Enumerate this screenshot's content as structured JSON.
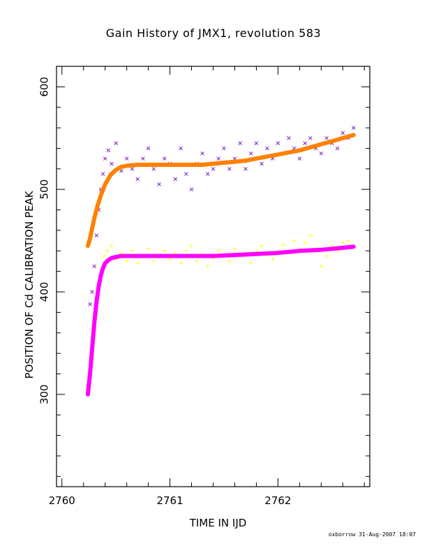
{
  "chart_data": {
    "type": "scatter",
    "title": "Gain History of JMX1, revolution 583",
    "xlabel": "TIME IN IJD",
    "ylabel": "POSITION OF Cd CALIBRATION PEAK",
    "xlim": [
      2759.95,
      2762.85
    ],
    "ylim": [
      210,
      620
    ],
    "xticks": [
      2760,
      2761,
      2762
    ],
    "xtick_labels": [
      "2760",
      "2761",
      "2762"
    ],
    "yticks": [
      300,
      400,
      500,
      600
    ],
    "ytick_labels": [
      "300",
      "400",
      "500",
      "600"
    ],
    "grid": false,
    "legend": "none",
    "series": [
      {
        "marker": "x",
        "color": "#7a1fc2",
        "points": [
          [
            2760.26,
            388
          ],
          [
            2760.28,
            400
          ],
          [
            2760.3,
            425
          ],
          [
            2760.32,
            455
          ],
          [
            2760.34,
            480
          ],
          [
            2760.36,
            500
          ],
          [
            2760.38,
            515
          ],
          [
            2760.4,
            530
          ],
          [
            2760.43,
            538
          ],
          [
            2760.46,
            525
          ],
          [
            2760.5,
            545
          ],
          [
            2760.55,
            518
          ],
          [
            2760.6,
            530
          ],
          [
            2760.65,
            520
          ],
          [
            2760.7,
            510
          ],
          [
            2760.75,
            530
          ],
          [
            2760.8,
            540
          ],
          [
            2760.85,
            520
          ],
          [
            2760.9,
            505
          ],
          [
            2760.95,
            530
          ],
          [
            2761.0,
            525
          ],
          [
            2761.05,
            510
          ],
          [
            2761.1,
            540
          ],
          [
            2761.15,
            515
          ],
          [
            2761.2,
            500
          ],
          [
            2761.25,
            525
          ],
          [
            2761.3,
            535
          ],
          [
            2761.35,
            515
          ],
          [
            2761.4,
            520
          ],
          [
            2761.45,
            530
          ],
          [
            2761.5,
            540
          ],
          [
            2761.55,
            520
          ],
          [
            2761.6,
            530
          ],
          [
            2761.65,
            545
          ],
          [
            2761.7,
            520
          ],
          [
            2761.75,
            535
          ],
          [
            2761.8,
            545
          ],
          [
            2761.85,
            525
          ],
          [
            2761.9,
            540
          ],
          [
            2761.95,
            530
          ],
          [
            2762.0,
            545
          ],
          [
            2762.05,
            535
          ],
          [
            2762.1,
            550
          ],
          [
            2762.15,
            540
          ],
          [
            2762.2,
            530
          ],
          [
            2762.25,
            545
          ],
          [
            2762.3,
            550
          ],
          [
            2762.35,
            540
          ],
          [
            2762.4,
            535
          ],
          [
            2762.45,
            550
          ],
          [
            2762.5,
            545
          ],
          [
            2762.55,
            540
          ],
          [
            2762.6,
            555
          ],
          [
            2762.65,
            550
          ],
          [
            2762.7,
            560
          ]
        ]
      },
      {
        "marker": "+",
        "color": "#ffff00",
        "points": [
          [
            2760.3,
            355
          ],
          [
            2760.33,
            395
          ],
          [
            2760.36,
            420
          ],
          [
            2760.39,
            435
          ],
          [
            2760.42,
            440
          ],
          [
            2760.46,
            445
          ],
          [
            2760.5,
            432
          ],
          [
            2760.55,
            438
          ],
          [
            2760.6,
            430
          ],
          [
            2760.65,
            440
          ],
          [
            2760.7,
            428
          ],
          [
            2760.75,
            435
          ],
          [
            2760.8,
            442
          ],
          [
            2760.85,
            430
          ],
          [
            2760.9,
            436
          ],
          [
            2760.95,
            440
          ],
          [
            2761.0,
            432
          ],
          [
            2761.05,
            438
          ],
          [
            2761.1,
            428
          ],
          [
            2761.15,
            440
          ],
          [
            2761.2,
            445
          ],
          [
            2761.25,
            430
          ],
          [
            2761.3,
            437
          ],
          [
            2761.35,
            425
          ],
          [
            2761.4,
            433
          ],
          [
            2761.45,
            440
          ],
          [
            2761.5,
            435
          ],
          [
            2761.55,
            430
          ],
          [
            2761.6,
            442
          ],
          [
            2761.65,
            436
          ],
          [
            2761.7,
            438
          ],
          [
            2761.75,
            428
          ],
          [
            2761.8,
            440
          ],
          [
            2761.85,
            445
          ],
          [
            2761.9,
            436
          ],
          [
            2761.95,
            432
          ],
          [
            2762.0,
            440
          ],
          [
            2762.05,
            446
          ],
          [
            2762.1,
            438
          ],
          [
            2762.15,
            450
          ],
          [
            2762.2,
            442
          ],
          [
            2762.25,
            448
          ],
          [
            2762.3,
            455
          ],
          [
            2762.35,
            440
          ],
          [
            2762.4,
            425
          ],
          [
            2762.45,
            435
          ],
          [
            2762.5,
            445
          ],
          [
            2762.55,
            440
          ],
          [
            2762.6,
            448
          ],
          [
            2762.65,
            450
          ],
          [
            2762.7,
            445
          ]
        ]
      },
      {
        "type": "line",
        "color": "#ff8000",
        "points": [
          [
            2760.24,
            445
          ],
          [
            2760.26,
            452
          ],
          [
            2760.28,
            462
          ],
          [
            2760.3,
            472
          ],
          [
            2760.33,
            484
          ],
          [
            2760.36,
            494
          ],
          [
            2760.4,
            505
          ],
          [
            2760.45,
            514
          ],
          [
            2760.5,
            519
          ],
          [
            2760.55,
            522
          ],
          [
            2760.6,
            523
          ],
          [
            2760.7,
            524
          ],
          [
            2760.8,
            524
          ],
          [
            2760.9,
            524
          ],
          [
            2761.0,
            524
          ],
          [
            2761.1,
            524
          ],
          [
            2761.2,
            524
          ],
          [
            2761.3,
            524
          ],
          [
            2761.4,
            525
          ],
          [
            2761.5,
            526
          ],
          [
            2761.6,
            527
          ],
          [
            2761.7,
            528
          ],
          [
            2761.8,
            530
          ],
          [
            2761.9,
            532
          ],
          [
            2762.0,
            534
          ],
          [
            2762.1,
            536
          ],
          [
            2762.2,
            538
          ],
          [
            2762.3,
            541
          ],
          [
            2762.4,
            544
          ],
          [
            2762.5,
            547
          ],
          [
            2762.6,
            550
          ],
          [
            2762.7,
            553
          ]
        ]
      },
      {
        "type": "line",
        "color": "#ff00ff",
        "points": [
          [
            2760.24,
            300
          ],
          [
            2760.26,
            320
          ],
          [
            2760.28,
            345
          ],
          [
            2760.3,
            370
          ],
          [
            2760.32,
            390
          ],
          [
            2760.34,
            405
          ],
          [
            2760.36,
            416
          ],
          [
            2760.38,
            423
          ],
          [
            2760.4,
            428
          ],
          [
            2760.43,
            431
          ],
          [
            2760.46,
            433
          ],
          [
            2760.5,
            434
          ],
          [
            2760.55,
            435
          ],
          [
            2760.6,
            435
          ],
          [
            2760.7,
            435
          ],
          [
            2760.8,
            435
          ],
          [
            2760.9,
            435
          ],
          [
            2761.0,
            435
          ],
          [
            2761.2,
            435
          ],
          [
            2761.4,
            435
          ],
          [
            2761.6,
            436
          ],
          [
            2761.8,
            437
          ],
          [
            2762.0,
            438
          ],
          [
            2762.2,
            440
          ],
          [
            2762.4,
            441
          ],
          [
            2762.6,
            443
          ],
          [
            2762.7,
            444
          ]
        ]
      }
    ]
  },
  "footer": "oxborrow 31-Aug-2007 18:07"
}
